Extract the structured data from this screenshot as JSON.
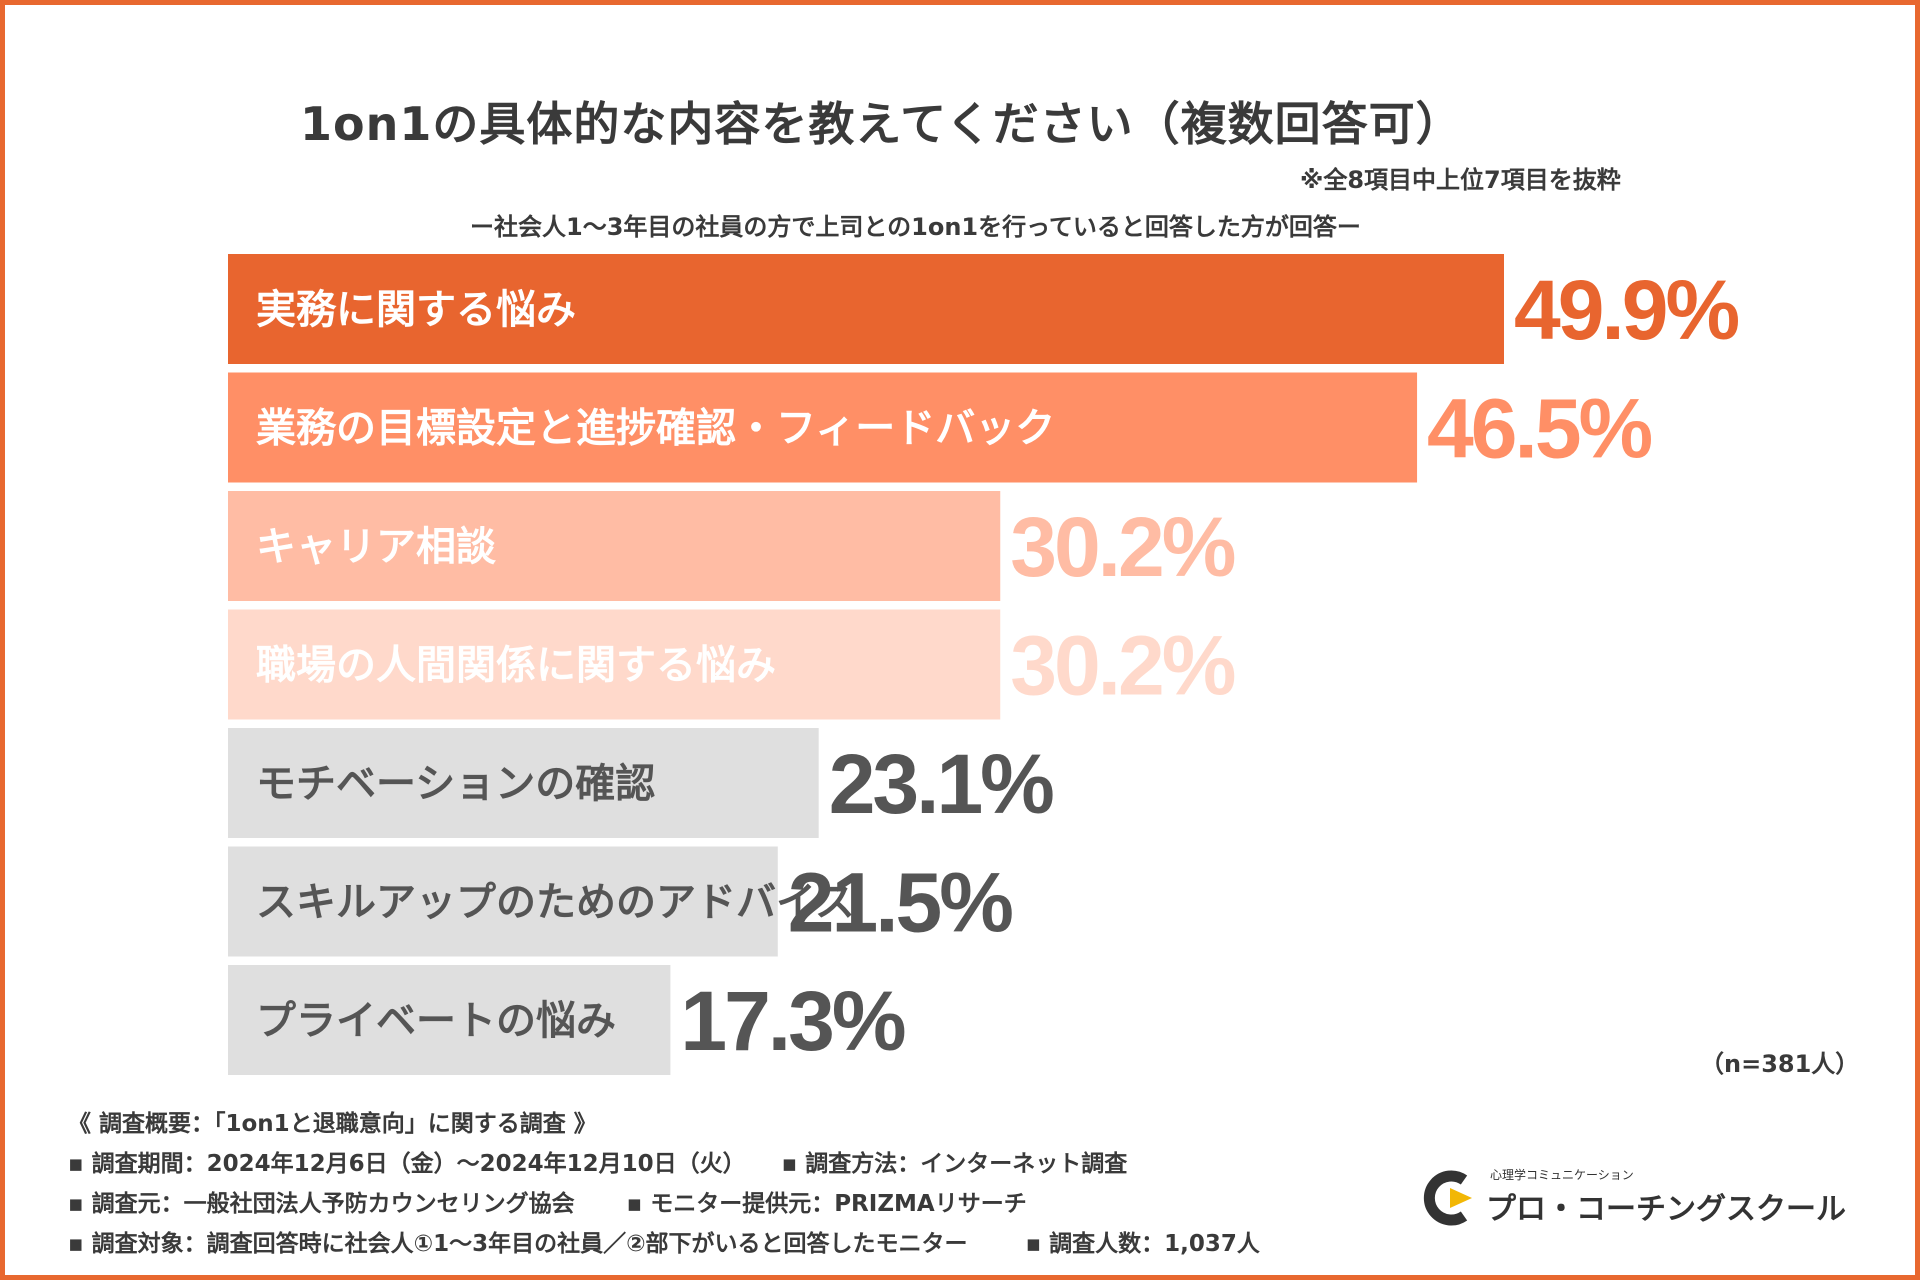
{
  "chart_data": {
    "type": "bar",
    "orientation": "horizontal",
    "title": "1on1の具体的な内容を教えてください（複数回答可）",
    "note": "※全8項目中上位7項目を抜粋",
    "subtitle": "ー社会人1〜3年目の社員の方で上司との1on1を行っていると回答した方が回答ー",
    "categories": [
      "実務に関する悩み",
      "業務の目標設定と進捗確認・フィードバック",
      "キャリア相談",
      "職場の人間関係に関する悩み",
      "モチベーションの確認",
      "スキルアップのためのアドバイス",
      "プライベートの悩み"
    ],
    "values": [
      49.9,
      46.5,
      30.2,
      30.2,
      23.1,
      21.5,
      17.3
    ],
    "value_labels": [
      "49.9%",
      "46.5%",
      "30.2%",
      "30.2%",
      "23.1%",
      "21.5%",
      "17.3%"
    ],
    "xlim": [
      0,
      55
    ],
    "unit": "%",
    "bar_colors": [
      "#E8652F",
      "#FF8F66",
      "#FFBCA4",
      "#FFD9CB",
      "#DFDFDF",
      "#DFDFDF",
      "#DFDFDF"
    ],
    "label_colors": [
      "#FFFFFF",
      "#FFFFFF",
      "#FFFFFF",
      "#FFFFFF",
      "#555555",
      "#555555",
      "#555555"
    ],
    "value_colors": [
      "#E8652F",
      "#FF8F66",
      "#FFBCA4",
      "#FFD9CB",
      "#555555",
      "#555555",
      "#555555"
    ],
    "sample": "（n=381人）"
  },
  "footer": {
    "overview": "《 調査概要：「1on1と退職意向」に関する調査 》",
    "period": "▪ 調査期間：2024年12月6日（金）〜2024年12月10日（火）",
    "method": "▪ 調査方法：インターネット調査",
    "source": "▪ 調査元：一般社団法人予防カウンセリング協会",
    "monitor": "▪ モニター提供元：PRIZMAリサーチ",
    "target": "▪ 調査対象：調査回答時に社会人①1〜3年目の社員／②部下がいると回答したモニター",
    "count": "▪ 調査人数：1,037人"
  },
  "logo": {
    "tagline": "心理学コミュニケーション",
    "name": "プロ・コーチングスクール",
    "accent": "#F2B705",
    "dark": "#333333"
  },
  "colors": {
    "frame": "#E8682F"
  }
}
